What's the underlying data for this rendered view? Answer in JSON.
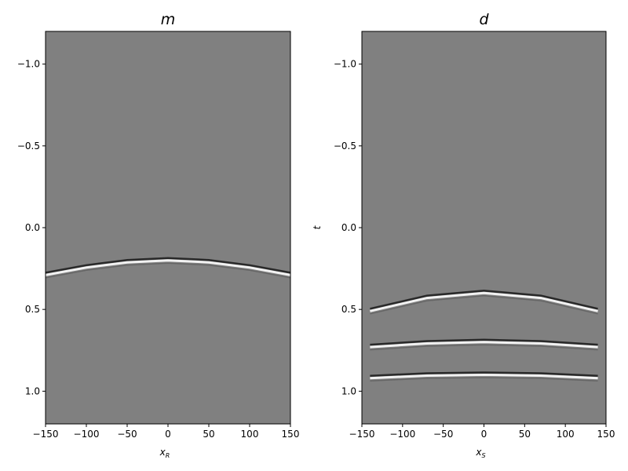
{
  "chart_data": [
    {
      "type": "image",
      "title": "m",
      "xlabel": "x",
      "xlabel_sub": "R",
      "xlim": [
        -150,
        150
      ],
      "ylim": [
        -1.2,
        1.2
      ],
      "y_inverted": true,
      "background": "#808080",
      "xticks": [
        {
          "value": -150,
          "label": "−150"
        },
        {
          "value": -100,
          "label": "−100"
        },
        {
          "value": -50,
          "label": "−50"
        },
        0,
        50,
        100,
        150
      ],
      "yticks": [
        {
          "value": -1.0,
          "label": "−1.0"
        },
        {
          "value": -0.5,
          "label": "−0.5"
        },
        {
          "value": 0.0,
          "label": "0.0"
        },
        {
          "value": 0.5,
          "label": "0.5"
        },
        {
          "value": 1.0,
          "label": "1.0"
        }
      ],
      "events": [
        {
          "x": [
            -150,
            -100,
            -50,
            0,
            50,
            100,
            150
          ],
          "t": [
            0.29,
            0.244,
            0.212,
            0.2,
            0.212,
            0.244,
            0.29
          ]
        }
      ]
    },
    {
      "type": "image",
      "title": "d",
      "xlabel": "x",
      "xlabel_sub": "S",
      "ylabel": "t",
      "xlim": [
        -150,
        150
      ],
      "ylim": [
        -1.2,
        1.2
      ],
      "y_inverted": true,
      "background": "#808080",
      "xticks": [
        {
          "value": -150,
          "label": "−150"
        },
        {
          "value": -100,
          "label": "−100"
        },
        {
          "value": -50,
          "label": "−50"
        },
        0,
        50,
        100,
        150
      ],
      "yticks": [
        {
          "value": -1.0,
          "label": "−1.0"
        },
        {
          "value": -0.5,
          "label": "−0.5"
        },
        {
          "value": 0.0,
          "label": "0.0"
        },
        {
          "value": 0.5,
          "label": "0.5"
        },
        {
          "value": 1.0,
          "label": "1.0"
        }
      ],
      "events": [
        {
          "x": [
            -140,
            -70,
            0,
            70,
            140
          ],
          "t": [
            0.51,
            0.43,
            0.4,
            0.43,
            0.51
          ]
        },
        {
          "x": [
            -140,
            -70,
            0,
            70,
            140
          ],
          "t": [
            0.73,
            0.708,
            0.7,
            0.708,
            0.73
          ]
        },
        {
          "x": [
            -140,
            -70,
            0,
            70,
            140
          ],
          "t": [
            0.92,
            0.905,
            0.9,
            0.905,
            0.92
          ]
        }
      ]
    }
  ]
}
